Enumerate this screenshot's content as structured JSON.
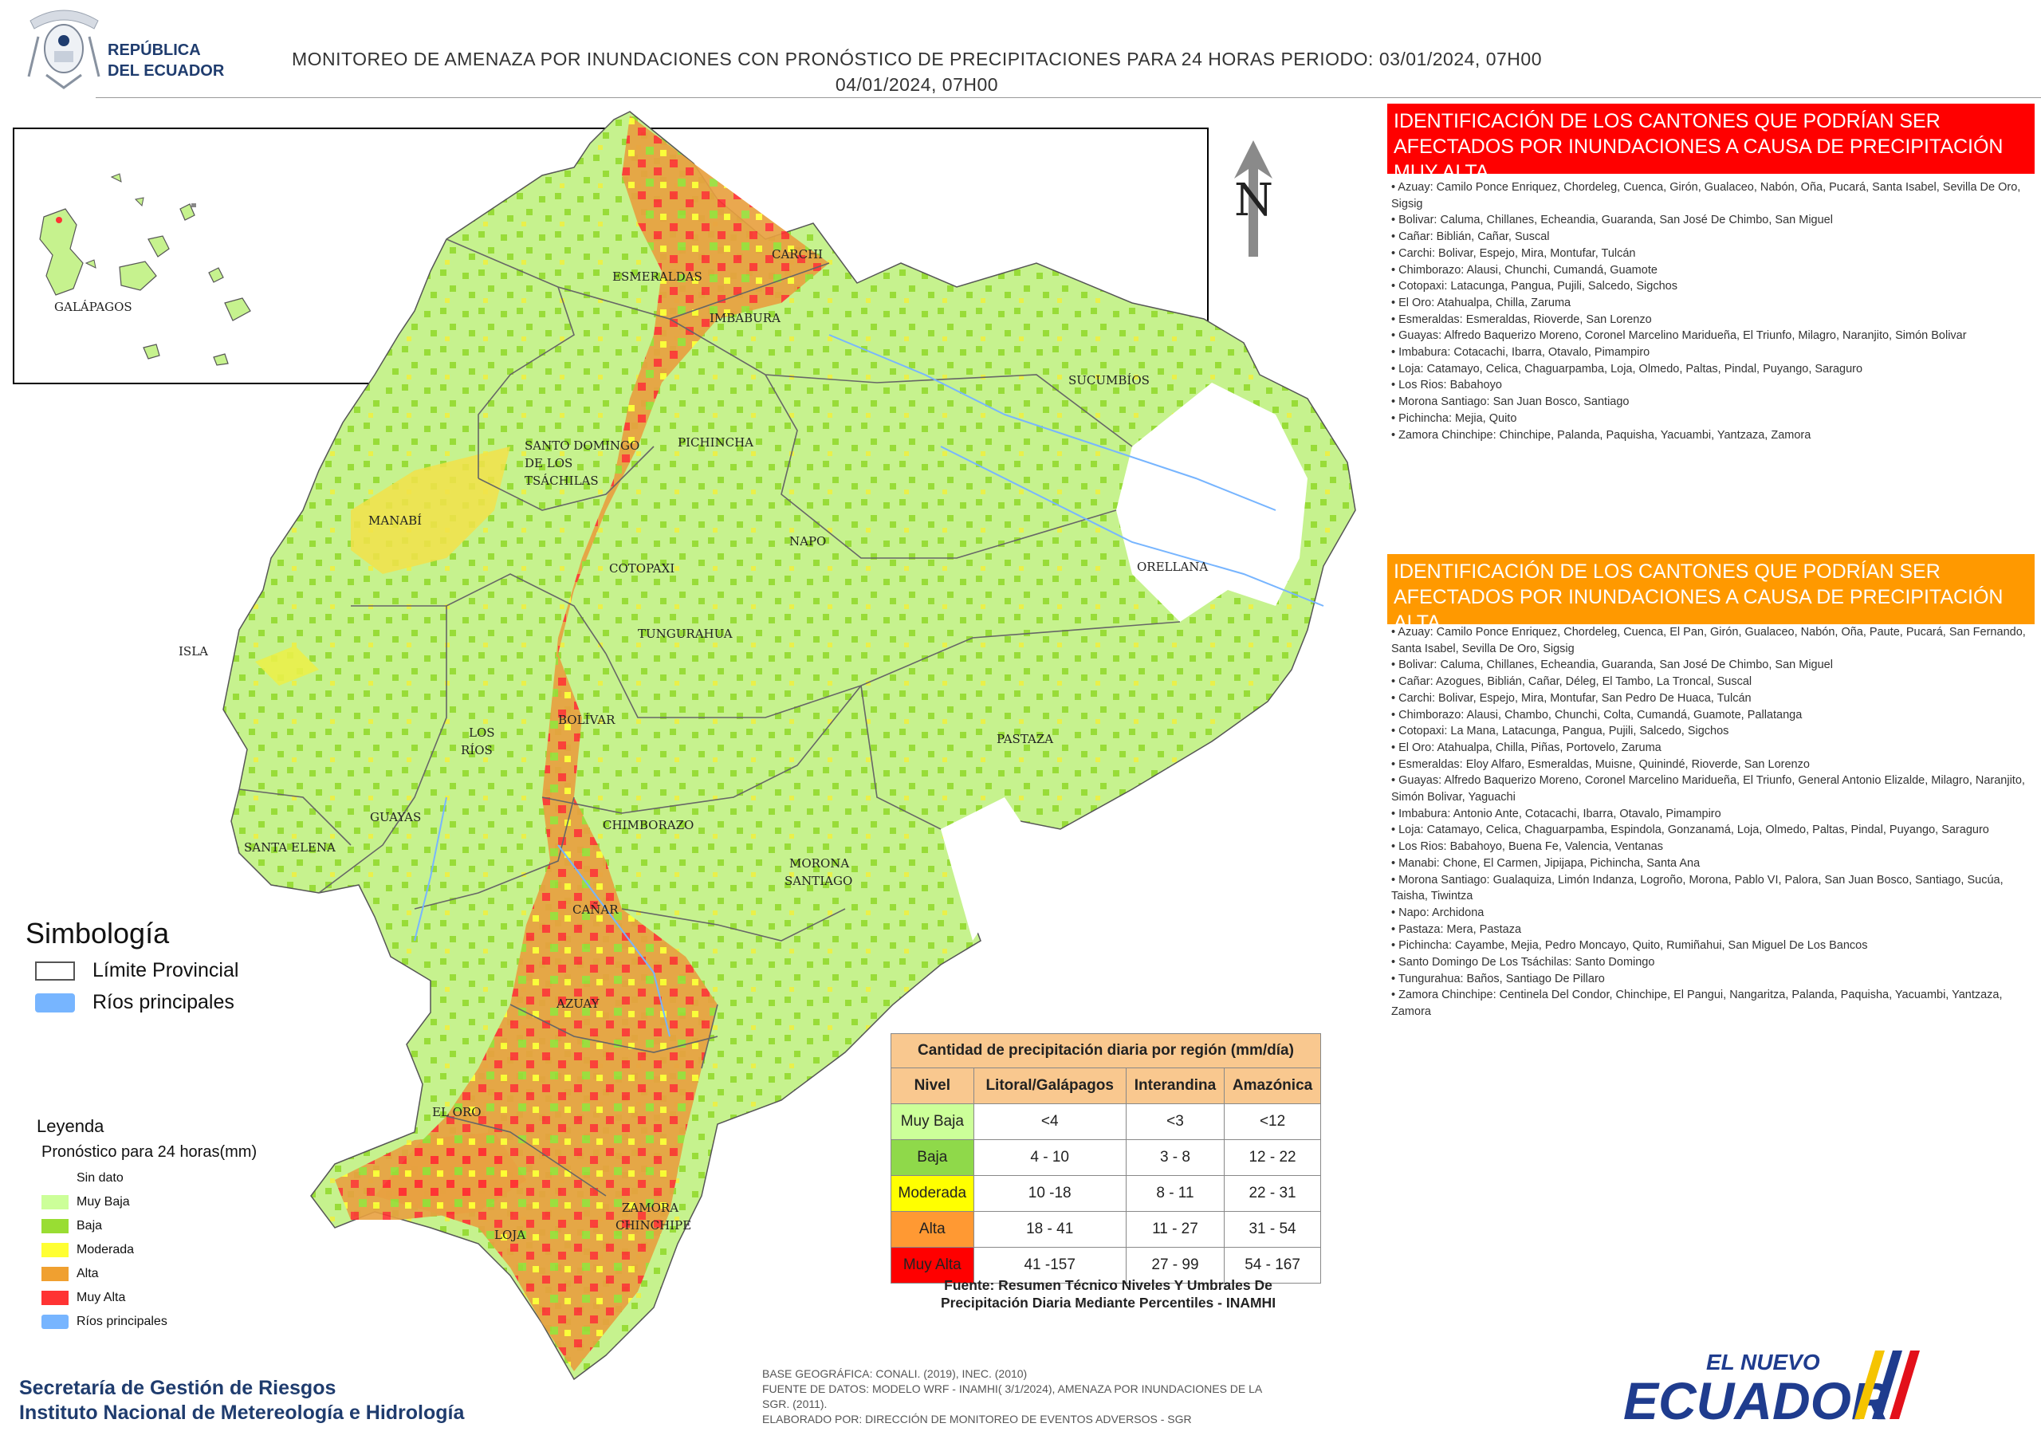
{
  "header": {
    "agency_name_line1": "REPÚBLICA",
    "agency_name_line2": "DEL ECUADOR",
    "title_line1": "MONITOREO DE AMENAZA POR INUNDACIONES  CON PRONÓSTICO DE  PRECIPITACIONES PARA 24 HORAS  PERIODO: 03/01/2024, 07H00",
    "title_line2": "04/01/2024, 07H00"
  },
  "map_labels": {
    "galapagos": "GALÁPAGOS",
    "esmeraldas": "ESMERALDAS",
    "carchi": "CARCHI",
    "imbabura": "IMBABURA",
    "sucumbios": "SUCUMBÍOS",
    "santo_domingo_1": "SANTO DOMINGO",
    "santo_domingo_2": "DE LOS",
    "santo_domingo_3": "TSÁCHILAS",
    "pichincha": "PICHINCHA",
    "manabi": "MANABÍ",
    "napo": "NAPO",
    "orellana": "ORELLANA",
    "cotopaxi": "COTOPAXI",
    "isla": "ISLA",
    "tungurahua": "TUNGURAHUA",
    "bolivar": "BOLÍVAR",
    "los_rios_1": "LOS",
    "los_rios_2": "RÍOS",
    "pastaza": "PASTAZA",
    "guayas": "GUAYAS",
    "chimborazo": "CHIMBORAZO",
    "santa_elena": "SANTA ELENA",
    "morona_1": "MORONA",
    "morona_2": "SANTIAGO",
    "canar": "CAÑAR",
    "azuay": "AZUAY",
    "el_oro": "EL ORO",
    "loja": "LOJA",
    "zamora_1": "ZAMORA",
    "zamora_2": "CHINCHIPE",
    "north_letter": "N"
  },
  "muy_alta": {
    "title": "IDENTIFICACIÓN DE LOS CANTONES QUE PODRÍAN SER AFECTADOS POR INUNDACIONES  A CAUSA DE PRECIPITACIÓN MUY ALTA",
    "color": "#ff0000",
    "items": [
      "• Azuay: Camilo Ponce Enriquez, Chordeleg, Cuenca, Girón, Gualaceo, Nabón, Oña, Pucará, Santa Isabel, Sevilla De Oro, Sigsig",
      "• Bolivar: Caluma, Chillanes, Echeandia, Guaranda, San José De Chimbo, San Miguel",
      "• Cañar: Biblián, Cañar, Suscal",
      "• Carchi: Bolivar, Espejo, Mira, Montufar, Tulcán",
      "• Chimborazo: Alausi, Chunchi, Cumandá, Guamote",
      "• Cotopaxi: Latacunga, Pangua, Pujili, Salcedo, Sigchos",
      "• El Oro: Atahualpa, Chilla, Zaruma",
      "• Esmeraldas: Esmeraldas, Rioverde, San Lorenzo",
      "• Guayas: Alfredo Baquerizo Moreno, Coronel Marcelino Maridueña, El Triunfo, Milagro, Naranjito, Simón Bolivar",
      "• Imbabura: Cotacachi, Ibarra, Otavalo, Pimampiro",
      "• Loja: Catamayo, Celica, Chaguarpamba, Loja, Olmedo, Paltas, Pindal, Puyango, Saraguro",
      "• Los Rios: Babahoyo",
      "• Morona Santiago: San Juan Bosco, Santiago",
      "• Pichincha: Mejia, Quito",
      "• Zamora Chinchipe: Chinchipe, Palanda, Paquisha, Yacuambi, Yantzaza, Zamora"
    ]
  },
  "alta": {
    "title": "IDENTIFICACIÓN DE LOS CANTONES QUE  PODRÍAN SER AFECTADOS POR INUNDACIONES  A CAUSA DE PRECIPITACIÓN  ALTA",
    "color": "#ff9900",
    "items": [
      "• Azuay: Camilo Ponce Enriquez, Chordeleg, Cuenca, El Pan, Girón, Gualaceo, Nabón, Oña, Paute, Pucará, San Fernando, Santa Isabel, Sevilla De Oro, Sigsig",
      "• Bolivar: Caluma, Chillanes, Echeandia, Guaranda, San José De Chimbo, San Miguel",
      "• Cañar: Azogues, Biblián, Cañar, Déleg, El Tambo, La Troncal, Suscal",
      "• Carchi: Bolivar, Espejo, Mira, Montufar, San Pedro De Huaca, Tulcán",
      "• Chimborazo: Alausi, Chambo, Chunchi, Colta, Cumandá, Guamote, Pallatanga",
      "• Cotopaxi: La Mana, Latacunga, Pangua, Pujili, Salcedo, Sigchos",
      "• El Oro: Atahualpa, Chilla, Piñas, Portovelo, Zaruma",
      "• Esmeraldas: Eloy Alfaro, Esmeraldas, Muisne, Quinindé, Rioverde, San Lorenzo",
      "• Guayas: Alfredo Baquerizo Moreno, Coronel Marcelino Maridueña, El Triunfo, General Antonio Elizalde, Milagro, Naranjito, Simón Bolivar, Yaguachi",
      "• Imbabura: Antonio Ante, Cotacachi, Ibarra, Otavalo, Pimampiro",
      "• Loja: Catamayo, Celica, Chaguarpamba, Espindola, Gonzanamá, Loja, Olmedo, Paltas, Pindal, Puyango, Saraguro",
      "• Los Rios: Babahoyo, Buena Fe, Valencia, Ventanas",
      "• Manabi: Chone, El Carmen, Jipijapa, Pichincha, Santa Ana",
      "• Morona Santiago: Gualaquiza, Limón Indanza, Logroño, Morona, Pablo VI, Palora, San Juan Bosco, Santiago, Sucúa, Taisha, Tiwintza",
      "• Napo: Archidona",
      "• Pastaza: Mera, Pastaza",
      "• Pichincha: Cayambe, Mejia, Pedro Moncayo, Quito, Rumiñahui, San Miguel De Los Bancos",
      "• Santo Domingo De Los Tsáchilas: Santo Domingo",
      "• Tungurahua: Baños, Santiago De Pillaro",
      "• Zamora Chinchipe: Centinela Del Condor, Chinchipe, El Pangui, Nangaritza, Palanda, Paquisha, Yacuambi, Yantzaza, Zamora"
    ]
  },
  "simbologia": {
    "title": "Simbología",
    "limite": "Límite Provincial",
    "rios": "Ríos principales",
    "rios_color": "#77b5ff"
  },
  "leyenda": {
    "title": "Leyenda",
    "subtitle": "Pronóstico para 24 horas(mm)",
    "items": [
      {
        "label": "Sin dato",
        "color": "#ffffff"
      },
      {
        "label": "Muy Baja",
        "color": "#ccff99"
      },
      {
        "label": "Baja",
        "color": "#99dd33"
      },
      {
        "label": "Moderada",
        "color": "#ffff33"
      },
      {
        "label": "Alta",
        "color": "#f0a030"
      },
      {
        "label": "Muy Alta",
        "color": "#ff3333"
      },
      {
        "label": "Ríos principales",
        "color": "#77b5ff"
      }
    ]
  },
  "precip_table": {
    "caption": "Cantidad de precipitación diaria por región (mm/día)",
    "headers": [
      "Nivel",
      "Litoral/Galápagos",
      "Interandina",
      "Amazónica"
    ],
    "rows": [
      {
        "nivel": "Muy Baja",
        "color": "#ccff99",
        "litoral": "<4",
        "interandina": "<3",
        "amazonica": "<12"
      },
      {
        "nivel": "Baja",
        "color": "#8fd94a",
        "litoral": "4 - 10",
        "interandina": "3 - 8",
        "amazonica": "12 - 22"
      },
      {
        "nivel": "Moderada",
        "color": "#ffff00",
        "litoral": "10 -18",
        "interandina": "8 - 11",
        "amazonica": "22 - 31"
      },
      {
        "nivel": "Alta",
        "color": "#ff9933",
        "litoral": "18 - 41",
        "interandina": "11 - 27",
        "amazonica": "31 - 54"
      },
      {
        "nivel": "Muy Alta",
        "color": "#ff0000",
        "litoral": "41 -157",
        "interandina": "27 - 99",
        "amazonica": "54 - 167"
      }
    ],
    "fuente_line1": "Fuente: Resumen Técnico Niveles Y Umbrales De",
    "fuente_line2": "Precipitación Diaria Mediante Percentiles - INAMHI"
  },
  "footer": {
    "org_line1": "Secretaría de Gestión de Riesgos",
    "org_line2": "Instituto Nacional de Metereología e Hidrología",
    "base_line1": "BASE GEOGRÁFICA: CONALI. (2019), INEC. (2010)",
    "base_line2": "FUENTE DE DATOS: MODELO WRF - INAMHI( 3/1/2024),  AMENAZA POR INUNDACIONES DE LA",
    "base_line3": "SGR. (2011).",
    "base_line4": "ELABORADO POR: DIRECCIÓN DE MONITOREO DE EVENTOS ADVERSOS - SGR",
    "brand_small": "EL NUEVO",
    "brand_big": "ECUADOR"
  }
}
